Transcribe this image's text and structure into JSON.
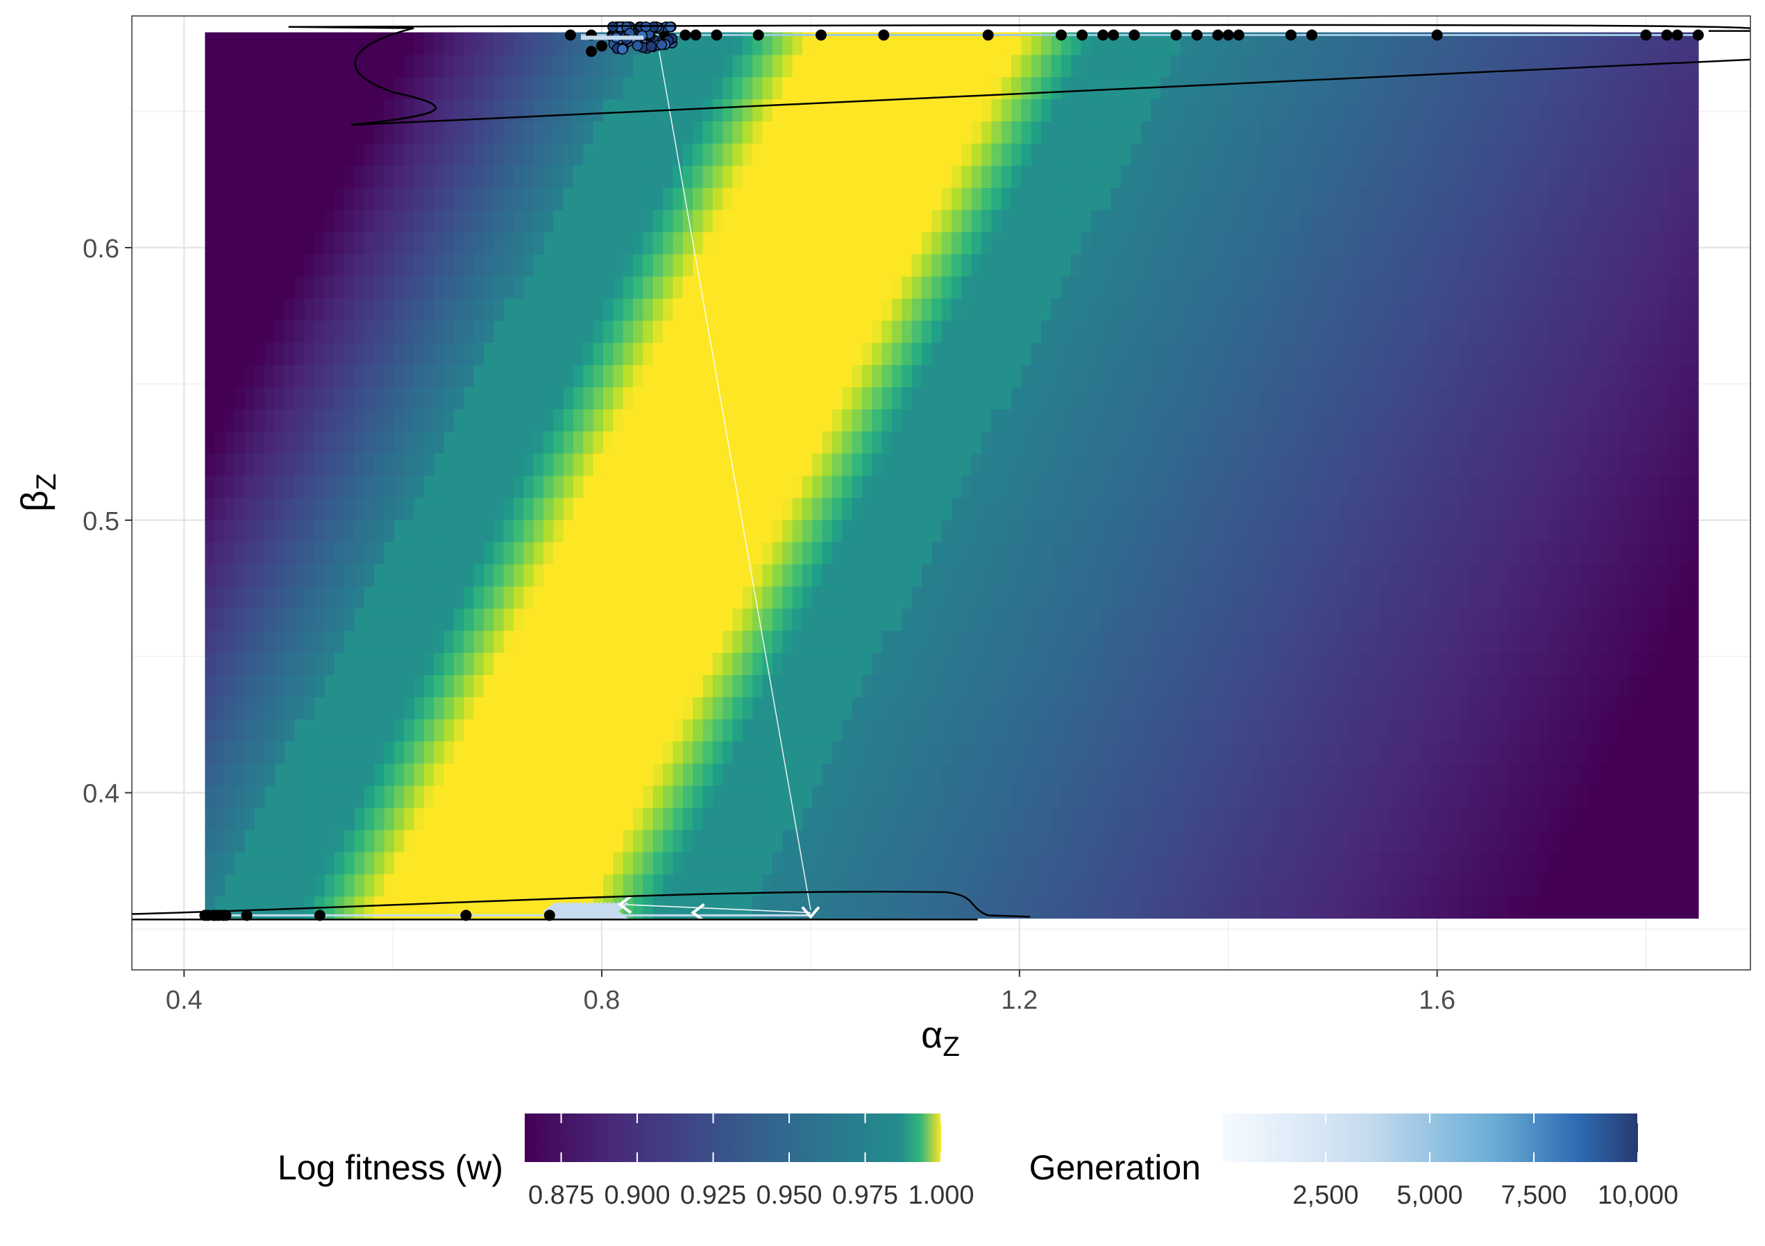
{
  "chart_data": {
    "type": "heatmap",
    "x": {
      "label_main": "α",
      "label_sub": "Z",
      "range": [
        0.35,
        1.9
      ],
      "ticks": [
        0.4,
        0.8,
        1.2,
        1.6
      ],
      "tick_labels": [
        "0.4",
        "0.8",
        "1.2",
        "1.6"
      ],
      "minor_ticks": [
        0.6,
        1.0,
        1.4,
        1.8
      ]
    },
    "y": {
      "label_main": "β",
      "label_sub": "Z",
      "range": [
        0.335,
        0.685
      ],
      "ticks": [
        0.4,
        0.5,
        0.6
      ],
      "tick_labels": [
        "0.4",
        "0.5",
        "0.6"
      ],
      "minor_ticks": [
        0.35,
        0.45,
        0.55,
        0.65
      ]
    },
    "grid": true,
    "heatmap": {
      "x_range": [
        0.42,
        1.85
      ],
      "y_range": [
        0.354,
        0.679
      ],
      "colormap": "viridis",
      "fitness_min": 0.863,
      "fitness_max": 1.0,
      "ridge": "w = 1 along the line alpha = 0.22 + 1.3 * beta (band half-width about 0.12 in alpha)"
    },
    "contour": {
      "color": "#000000",
      "top_region": {
        "alpha_min": 0.5,
        "alpha_max": 1.9,
        "beta_min": 0.645,
        "beta_max": 0.682
      },
      "bottom_region": {
        "alpha_min": 0.35,
        "alpha_max": 1.21,
        "beta_min": 0.352,
        "beta_max": 0.365
      }
    },
    "trajectory": {
      "top_cluster": {
        "alpha": 0.84,
        "beta": 0.677
      },
      "top_points_alpha": [
        0.77,
        0.79,
        0.81,
        0.86,
        0.88,
        0.89,
        0.91,
        0.95,
        1.01,
        1.07,
        1.17,
        1.24,
        1.26,
        1.28,
        1.29,
        1.31,
        1.35,
        1.37,
        1.39,
        1.4,
        1.41,
        1.46,
        1.48,
        1.6,
        1.8,
        1.82,
        1.83,
        1.85
      ],
      "bottom_points_alpha": [
        0.42,
        0.43,
        0.44,
        0.46,
        0.53,
        0.67,
        0.75
      ],
      "bottom_band_alpha": [
        0.75,
        0.82
      ],
      "arrow_marks": [
        {
          "alpha": 0.82,
          "beta": 0.359,
          "dir": "left"
        },
        {
          "alpha": 0.89,
          "beta": 0.356,
          "dir": "left"
        },
        {
          "alpha": 1.0,
          "beta": 0.356,
          "dir": "down"
        }
      ],
      "jump": {
        "from": [
          0.855,
          0.672
        ],
        "to": [
          1.0,
          0.357
        ]
      }
    },
    "legend": {
      "placement": "bottom",
      "fitness": {
        "title": "Log fitness (w)",
        "range": [
          0.863,
          1.0
        ],
        "breaks": [
          0.875,
          0.9,
          0.925,
          0.95,
          0.975,
          1.0
        ],
        "labels": [
          "0.875",
          "0.900",
          "0.925",
          "0.950",
          "0.975",
          "1.000"
        ]
      },
      "generation": {
        "title": "Generation",
        "range": [
          1,
          10000
        ],
        "breaks": [
          2500,
          5000,
          7500,
          10000
        ],
        "labels": [
          "2,500",
          "5,000",
          "7,500",
          "10,000"
        ],
        "color_low": "#f7fbff",
        "color_high": "#263a72"
      }
    }
  }
}
